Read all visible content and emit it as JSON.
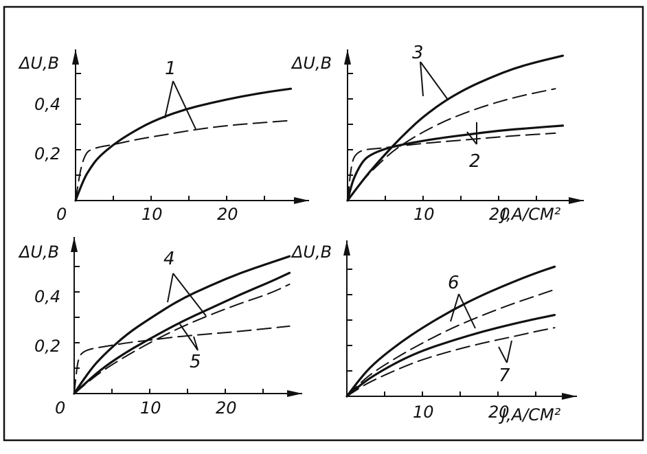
{
  "chart_data": [
    {
      "type": "line",
      "panel": "top-left",
      "ylabel": "ΔU,B",
      "xlabel": "",
      "origin_label": "0",
      "xlim": [
        0,
        30
      ],
      "ylim": [
        0,
        0.6
      ],
      "xticks": [
        "10",
        "20"
      ],
      "yticks": [
        "0,2",
        "0,4"
      ],
      "series": [
        {
          "name": "1",
          "style": "solid",
          "x": [
            0,
            1,
            2,
            3,
            5,
            7,
            10,
            14,
            18,
            22,
            26,
            28.5
          ],
          "y": [
            0,
            0.08,
            0.13,
            0.17,
            0.22,
            0.26,
            0.31,
            0.355,
            0.385,
            0.41,
            0.43,
            0.44
          ]
        },
        {
          "name": "1",
          "style": "dashed",
          "x": [
            0,
            0.5,
            1,
            1.5,
            2,
            3,
            5,
            8,
            12,
            16,
            20,
            24,
            28.5
          ],
          "y": [
            0,
            0.1,
            0.16,
            0.19,
            0.2,
            0.21,
            0.22,
            0.24,
            0.26,
            0.28,
            0.295,
            0.305,
            0.315
          ]
        }
      ],
      "annotations": [
        "1"
      ]
    },
    {
      "type": "line",
      "panel": "top-right",
      "ylabel": "ΔU,B",
      "xlabel": "J,A/CM²",
      "origin_label": "",
      "xlim": [
        0,
        30
      ],
      "ylim": [
        0,
        0.6
      ],
      "xticks": [
        "10",
        "20"
      ],
      "yticks": [],
      "series": [
        {
          "name": "3",
          "style": "solid",
          "x": [
            0,
            2,
            4,
            6,
            8,
            10,
            13,
            16,
            19,
            22,
            25,
            28.5
          ],
          "y": [
            0,
            0.08,
            0.15,
            0.215,
            0.275,
            0.33,
            0.395,
            0.445,
            0.485,
            0.52,
            0.545,
            0.57
          ]
        },
        {
          "name": "3",
          "style": "dashed",
          "x": [
            0,
            2,
            4,
            6,
            8,
            10,
            13,
            16,
            19,
            22,
            25,
            27.5
          ],
          "y": [
            0,
            0.08,
            0.14,
            0.195,
            0.235,
            0.27,
            0.315,
            0.35,
            0.38,
            0.405,
            0.425,
            0.44
          ]
        },
        {
          "name": "2",
          "style": "solid",
          "x": [
            0,
            0.5,
            1,
            2,
            3,
            5,
            8,
            12,
            16,
            20,
            24,
            28.5
          ],
          "y": [
            0,
            0.06,
            0.1,
            0.155,
            0.18,
            0.205,
            0.225,
            0.245,
            0.26,
            0.275,
            0.285,
            0.295
          ]
        },
        {
          "name": "2",
          "style": "dashed",
          "x": [
            0,
            0.3,
            0.6,
            1,
            2,
            4,
            7,
            10,
            14,
            18,
            22,
            27.5
          ],
          "y": [
            0,
            0.09,
            0.15,
            0.18,
            0.2,
            0.205,
            0.215,
            0.225,
            0.235,
            0.245,
            0.255,
            0.265
          ]
        }
      ],
      "annotations": [
        "3",
        "2"
      ]
    },
    {
      "type": "line",
      "panel": "bottom-left",
      "ylabel": "ΔU,B",
      "xlabel": "",
      "origin_label": "0",
      "xlim": [
        0,
        30
      ],
      "ylim": [
        0,
        0.6
      ],
      "xticks": [
        "10",
        "20"
      ],
      "yticks": [
        "0,2",
        "0,4"
      ],
      "series": [
        {
          "name": "4",
          "style": "solid",
          "x": [
            0,
            2,
            4,
            7,
            10,
            14,
            18,
            22,
            26,
            28.5
          ],
          "y": [
            0,
            0.09,
            0.155,
            0.235,
            0.295,
            0.37,
            0.425,
            0.475,
            0.515,
            0.54
          ]
        },
        {
          "name": "4",
          "style": "solid",
          "x": [
            0,
            2,
            4,
            7,
            10,
            14,
            18,
            22,
            26,
            28.5
          ],
          "y": [
            0,
            0.055,
            0.105,
            0.165,
            0.215,
            0.28,
            0.335,
            0.39,
            0.44,
            0.475
          ]
        },
        {
          "name": "5",
          "style": "dashed",
          "x": [
            0,
            2,
            4,
            7,
            10,
            14,
            18,
            22,
            26,
            28.5
          ],
          "y": [
            0,
            0.05,
            0.095,
            0.15,
            0.2,
            0.26,
            0.31,
            0.355,
            0.395,
            0.43
          ]
        },
        {
          "name": "5",
          "style": "dashed",
          "x": [
            0,
            0.3,
            0.6,
            1,
            2,
            4,
            7,
            10,
            14,
            18,
            22,
            28.5
          ],
          "y": [
            0,
            0.09,
            0.14,
            0.16,
            0.175,
            0.185,
            0.2,
            0.21,
            0.225,
            0.235,
            0.245,
            0.265
          ]
        }
      ],
      "annotations": [
        "4",
        "5"
      ]
    },
    {
      "type": "line",
      "panel": "bottom-right",
      "ylabel": "ΔU,B",
      "xlabel": "J,A/CM²",
      "origin_label": "",
      "xlim": [
        0,
        30
      ],
      "ylim": [
        0,
        0.6
      ],
      "xticks": [
        "10",
        "20"
      ],
      "yticks": [],
      "series": [
        {
          "name": "6",
          "style": "solid",
          "x": [
            0,
            2,
            4,
            7,
            10,
            14,
            18,
            22,
            25,
            27.5
          ],
          "y": [
            0,
            0.08,
            0.14,
            0.21,
            0.27,
            0.34,
            0.4,
            0.45,
            0.485,
            0.51
          ]
        },
        {
          "name": "6",
          "style": "dashed",
          "x": [
            0,
            2,
            4,
            7,
            10,
            14,
            18,
            22,
            25,
            27.5
          ],
          "y": [
            0,
            0.06,
            0.105,
            0.16,
            0.21,
            0.27,
            0.32,
            0.365,
            0.395,
            0.42
          ]
        },
        {
          "name": "7",
          "style": "solid",
          "x": [
            0,
            2,
            4,
            7,
            10,
            14,
            18,
            22,
            25,
            27.5
          ],
          "y": [
            0,
            0.05,
            0.09,
            0.14,
            0.18,
            0.22,
            0.255,
            0.285,
            0.305,
            0.32
          ]
        },
        {
          "name": "7",
          "style": "dashed",
          "x": [
            0,
            2,
            4,
            7,
            10,
            14,
            18,
            22,
            25,
            27.5
          ],
          "y": [
            0,
            0.04,
            0.07,
            0.11,
            0.145,
            0.18,
            0.21,
            0.235,
            0.255,
            0.27
          ]
        }
      ],
      "annotations": [
        "6",
        "7"
      ]
    }
  ]
}
